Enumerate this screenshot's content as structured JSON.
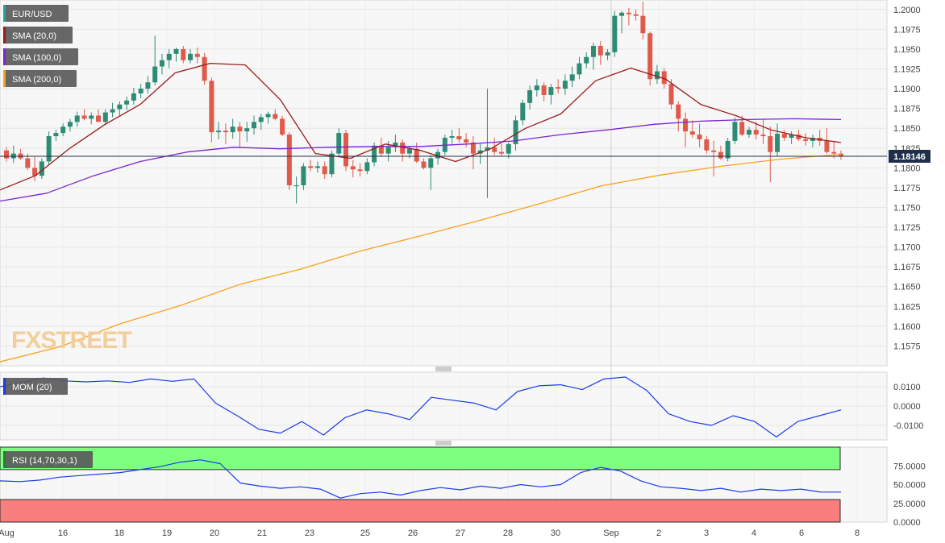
{
  "chart_data": [
    {
      "type": "candlestick",
      "panel": "price",
      "ylim": [
        1.155,
        1.2012
      ],
      "y_ticks": [
        "1.2000",
        "1.1975",
        "1.1950",
        "1.1925",
        "1.1900",
        "1.1875",
        "1.1850",
        "1.1825",
        "1.1800",
        "1.1775",
        "1.1750",
        "1.1725",
        "1.1700",
        "1.1675",
        "1.1650",
        "1.1625",
        "1.1600",
        "1.1575"
      ],
      "x_ticks": [
        "Aug",
        "16",
        "18",
        "19",
        "20",
        "21",
        "23",
        "25",
        "26",
        "27",
        "28",
        "30",
        "Sep",
        "2",
        "3",
        "4",
        "6",
        "8"
      ],
      "current_price": "1.18146",
      "legend": [
        {
          "label": "EUR/USD",
          "color": "#26a69a"
        },
        {
          "label": "SMA (20,0)",
          "color": "#9b1a1a"
        },
        {
          "label": "SMA (100,0)",
          "color": "#7b22d6"
        },
        {
          "label": "SMA (200,0)",
          "color": "#f7a21b"
        }
      ],
      "up_color": "#2e8b74",
      "down_color": "#e05a4b",
      "candles": [
        [
          1.1822,
          1.1826,
          1.1808,
          1.1812
        ],
        [
          1.1812,
          1.1828,
          1.1806,
          1.1818
        ],
        [
          1.1818,
          1.1824,
          1.181,
          1.1812
        ],
        [
          1.1812,
          1.1818,
          1.1797,
          1.18
        ],
        [
          1.18,
          1.1815,
          1.1783,
          1.179
        ],
        [
          1.179,
          1.1812,
          1.1786,
          1.1808
        ],
        [
          1.1808,
          1.1846,
          1.1804,
          1.184
        ],
        [
          1.184,
          1.1848,
          1.1834,
          1.1844
        ],
        [
          1.1844,
          1.1856,
          1.184,
          1.1852
        ],
        [
          1.1852,
          1.1862,
          1.1846,
          1.1858
        ],
        [
          1.1858,
          1.1871,
          1.1852,
          1.1866
        ],
        [
          1.1866,
          1.1874,
          1.186,
          1.1862
        ],
        [
          1.1862,
          1.187,
          1.1855,
          1.1866
        ],
        [
          1.1866,
          1.1874,
          1.186,
          1.1858
        ],
        [
          1.1858,
          1.1874,
          1.1854,
          1.187
        ],
        [
          1.187,
          1.1882,
          1.1864,
          1.1874
        ],
        [
          1.1874,
          1.1884,
          1.1866,
          1.188
        ],
        [
          1.188,
          1.189,
          1.1873,
          1.1885
        ],
        [
          1.1885,
          1.1901,
          1.188,
          1.1894
        ],
        [
          1.1894,
          1.1906,
          1.1888,
          1.19
        ],
        [
          1.19,
          1.1916,
          1.1894,
          1.1908
        ],
        [
          1.1908,
          1.1967,
          1.1904,
          1.1928
        ],
        [
          1.1928,
          1.1944,
          1.1918,
          1.1936
        ],
        [
          1.1936,
          1.195,
          1.1926,
          1.1944
        ],
        [
          1.1944,
          1.1952,
          1.1934,
          1.195
        ],
        [
          1.195,
          1.1954,
          1.1932,
          1.1936
        ],
        [
          1.1936,
          1.195,
          1.1932,
          1.1944
        ],
        [
          1.1944,
          1.1952,
          1.1932,
          1.194
        ],
        [
          1.194,
          1.1945,
          1.1905,
          1.191
        ],
        [
          1.191,
          1.1914,
          1.1832,
          1.1845
        ],
        [
          1.1845,
          1.1858,
          1.1836,
          1.1847
        ],
        [
          1.1847,
          1.1856,
          1.183,
          1.1845
        ],
        [
          1.1845,
          1.1862,
          1.1837,
          1.1852
        ],
        [
          1.1852,
          1.1858,
          1.1826,
          1.1846
        ],
        [
          1.1846,
          1.1858,
          1.1833,
          1.185
        ],
        [
          1.185,
          1.1866,
          1.1842,
          1.1858
        ],
        [
          1.1858,
          1.1868,
          1.1848,
          1.1864
        ],
        [
          1.1864,
          1.1871,
          1.1856,
          1.1868
        ],
        [
          1.1868,
          1.1874,
          1.186,
          1.1862
        ],
        [
          1.1862,
          1.1866,
          1.184,
          1.1842
        ],
        [
          1.1842,
          1.1845,
          1.1772,
          1.1778
        ],
        [
          1.1778,
          1.1789,
          1.1755,
          1.1778
        ],
        [
          1.1778,
          1.1806,
          1.1772,
          1.1802
        ],
        [
          1.1802,
          1.181,
          1.1796,
          1.18
        ],
        [
          1.18,
          1.1808,
          1.1794,
          1.1802
        ],
        [
          1.1802,
          1.1808,
          1.1786,
          1.1792
        ],
        [
          1.1792,
          1.1822,
          1.1788,
          1.1818
        ],
        [
          1.1818,
          1.185,
          1.1814,
          1.1844
        ],
        [
          1.1844,
          1.1848,
          1.1796,
          1.1802
        ],
        [
          1.1802,
          1.181,
          1.1788,
          1.1798
        ],
        [
          1.1798,
          1.1806,
          1.1789,
          1.1796
        ],
        [
          1.1796,
          1.1812,
          1.1792,
          1.1807
        ],
        [
          1.1807,
          1.1832,
          1.1802,
          1.1828
        ],
        [
          1.1828,
          1.1838,
          1.1814,
          1.1818
        ],
        [
          1.1818,
          1.1834,
          1.1808,
          1.1826
        ],
        [
          1.1826,
          1.1842,
          1.182,
          1.1832
        ],
        [
          1.1832,
          1.1836,
          1.1808,
          1.1818
        ],
        [
          1.1818,
          1.1828,
          1.1812,
          1.1824
        ],
        [
          1.1824,
          1.1832,
          1.1806,
          1.1808
        ],
        [
          1.1808,
          1.1812,
          1.1798,
          1.18
        ],
        [
          1.18,
          1.1816,
          1.1772,
          1.1812
        ],
        [
          1.1812,
          1.1824,
          1.1804,
          1.182
        ],
        [
          1.182,
          1.1842,
          1.1816,
          1.1838
        ],
        [
          1.1838,
          1.1848,
          1.183,
          1.184
        ],
        [
          1.184,
          1.185,
          1.1832,
          1.1836
        ],
        [
          1.1836,
          1.1844,
          1.1826,
          1.1832
        ],
        [
          1.1832,
          1.184,
          1.1798,
          1.1818
        ],
        [
          1.1818,
          1.183,
          1.1805,
          1.1822
        ],
        [
          1.1822,
          1.19,
          1.1762,
          1.1826
        ],
        [
          1.1826,
          1.1838,
          1.1816,
          1.182
        ],
        [
          1.182,
          1.183,
          1.1814,
          1.1818
        ],
        [
          1.1818,
          1.1832,
          1.1812,
          1.183
        ],
        [
          1.183,
          1.1866,
          1.1822,
          1.186
        ],
        [
          1.186,
          1.1886,
          1.1854,
          1.1882
        ],
        [
          1.1882,
          1.1904,
          1.1874,
          1.1898
        ],
        [
          1.1898,
          1.1912,
          1.189,
          1.1904
        ],
        [
          1.1904,
          1.1908,
          1.1884,
          1.1892
        ],
        [
          1.1892,
          1.1906,
          1.188,
          1.1902
        ],
        [
          1.1902,
          1.1912,
          1.1894,
          1.19
        ],
        [
          1.19,
          1.1918,
          1.1892,
          1.191
        ],
        [
          1.191,
          1.1928,
          1.1902,
          1.1918
        ],
        [
          1.1918,
          1.194,
          1.1912,
          1.1932
        ],
        [
          1.1932,
          1.1946,
          1.1926,
          1.194
        ],
        [
          1.194,
          1.1958,
          1.1924,
          1.1954
        ],
        [
          1.1954,
          1.196,
          1.193,
          1.1942
        ],
        [
          1.1942,
          1.195,
          1.1936,
          1.1946
        ],
        [
          1.1946,
          1.1998,
          1.194,
          1.1992
        ],
        [
          1.1992,
          1.1998,
          1.197,
          1.1996
        ],
        [
          1.1996,
          1.2002,
          1.198,
          1.1994
        ],
        [
          1.1994,
          1.2,
          1.1986,
          1.1992
        ],
        [
          1.1992,
          1.201,
          1.1962,
          1.197
        ],
        [
          1.197,
          1.1972,
          1.1904,
          1.1912
        ],
        [
          1.1912,
          1.193,
          1.1906,
          1.1922
        ],
        [
          1.1922,
          1.1926,
          1.19,
          1.1906
        ],
        [
          1.1906,
          1.1912,
          1.1874,
          1.188
        ],
        [
          1.188,
          1.1884,
          1.1846,
          1.1862
        ],
        [
          1.1862,
          1.187,
          1.1826,
          1.1846
        ],
        [
          1.1846,
          1.186,
          1.1838,
          1.1842
        ],
        [
          1.1842,
          1.1856,
          1.1826,
          1.1836
        ],
        [
          1.1836,
          1.184,
          1.1818,
          1.1822
        ],
        [
          1.1822,
          1.1834,
          1.1789,
          1.182
        ],
        [
          1.182,
          1.1828,
          1.181,
          1.1812
        ],
        [
          1.1812,
          1.1838,
          1.1808,
          1.1834
        ],
        [
          1.1834,
          1.1864,
          1.183,
          1.1858
        ],
        [
          1.1858,
          1.1866,
          1.184,
          1.1842
        ],
        [
          1.1842,
          1.1852,
          1.1838,
          1.1848
        ],
        [
          1.1848,
          1.1858,
          1.1836,
          1.1842
        ],
        [
          1.1842,
          1.1862,
          1.183,
          1.184
        ],
        [
          1.184,
          1.1852,
          1.1782,
          1.182
        ],
        [
          1.182,
          1.1856,
          1.1815,
          1.1843
        ],
        [
          1.1843,
          1.1848,
          1.1834,
          1.1838
        ],
        [
          1.1838,
          1.1846,
          1.183,
          1.1842
        ],
        [
          1.1842,
          1.1848,
          1.1834,
          1.1836
        ],
        [
          1.1836,
          1.1844,
          1.1828,
          1.1834
        ],
        [
          1.1834,
          1.1842,
          1.1826,
          1.1838
        ],
        [
          1.1838,
          1.1848,
          1.1828,
          1.1834
        ],
        [
          1.1834,
          1.185,
          1.1818,
          1.182
        ],
        [
          1.182,
          1.1834,
          1.1812,
          1.1818
        ],
        [
          1.1818,
          1.1822,
          1.181,
          1.1815
        ]
      ],
      "sma20": [
        1.1772,
        1.179,
        1.1825,
        1.1855,
        1.188,
        1.192,
        1.1932,
        1.193,
        1.1886,
        1.1818,
        1.1812,
        1.183,
        1.1822,
        1.1808,
        1.1824,
        1.185,
        1.1868,
        1.191,
        1.1926,
        1.1912,
        1.188,
        1.1866,
        1.1848,
        1.1838,
        1.1832
      ],
      "sma100": [
        1.1758,
        1.1768,
        1.179,
        1.1808,
        1.182,
        1.1826,
        1.1824,
        1.1826,
        1.1827,
        1.1827,
        1.183,
        1.1834,
        1.1842,
        1.1848,
        1.1855,
        1.1859,
        1.1861,
        1.1862,
        1.1861
      ],
      "sma200": [
        1.1555,
        1.1574,
        1.1603,
        1.1626,
        1.1653,
        1.1672,
        1.1695,
        1.1714,
        1.1734,
        1.1755,
        1.1777,
        1.1791,
        1.1802,
        1.1811,
        1.1817
      ]
    },
    {
      "type": "line",
      "panel": "momentum",
      "label": "MOM (20)",
      "ylim": [
        -0.0175,
        0.0175
      ],
      "y_ticks": [
        "0.0100",
        "0.0000",
        "-0.0100"
      ],
      "color": "#1a3ce8",
      "values": [
        0.01,
        0.012,
        0.0145,
        0.013,
        0.0125,
        0.013,
        0.0122,
        0.014,
        0.0128,
        0.014,
        0.0015,
        -0.005,
        -0.012,
        -0.014,
        -0.008,
        -0.015,
        -0.006,
        -0.002,
        -0.004,
        -0.007,
        0.0045,
        0.003,
        0.0015,
        -0.002,
        0.0075,
        0.0105,
        0.011,
        0.0085,
        0.014,
        0.015,
        0.008,
        -0.004,
        -0.008,
        -0.01,
        -0.005,
        -0.008,
        -0.016,
        -0.008,
        -0.005,
        -0.002
      ]
    },
    {
      "type": "line",
      "panel": "rsi",
      "label": "RSI (14,70,30,1)",
      "ylim": [
        0,
        100
      ],
      "y_ticks": [
        "75.0000",
        "50.0000",
        "25.0000",
        "0.0000"
      ],
      "overbought": 70,
      "oversold": 30,
      "color": "#1a3ce8",
      "values": [
        55,
        54,
        56,
        60,
        62,
        64,
        66,
        70,
        74,
        80,
        83,
        78,
        52,
        48,
        45,
        47,
        44,
        32,
        38,
        40,
        36,
        42,
        46,
        43,
        48,
        45,
        50,
        47,
        50,
        66,
        73,
        68,
        55,
        47,
        45,
        42,
        45,
        40,
        44,
        42,
        44,
        40,
        40
      ]
    }
  ],
  "branding": "FXSTREET"
}
